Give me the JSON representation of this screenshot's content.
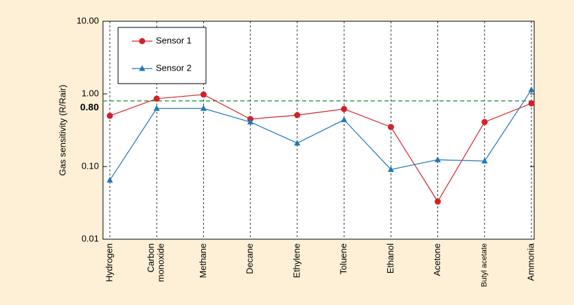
{
  "chart_data": {
    "type": "line",
    "y_label": "Gas sensitivity (R/Rair)",
    "categories": [
      "Hydrogen",
      "Carbon\nmonoxide",
      "Methane",
      "Decane",
      "Ethylene",
      "Toluene",
      "Ethanol",
      "Acetone",
      "Butyl acetate",
      "Ammonia"
    ],
    "series": [
      {
        "name": "Sensor 1",
        "color": "#d42027",
        "marker": "circle",
        "values": [
          0.5,
          0.86,
          0.98,
          0.45,
          0.51,
          0.62,
          0.35,
          0.033,
          0.41,
          0.74
        ]
      },
      {
        "name": "Sensor 2",
        "color": "#1f78b8",
        "marker": "triangle",
        "values": [
          0.065,
          0.63,
          0.63,
          0.41,
          0.21,
          0.44,
          0.091,
          0.124,
          0.119,
          1.14
        ]
      }
    ],
    "threshold": {
      "value": 0.8,
      "label": "0.80",
      "color": "#2a9d4a"
    },
    "ylim": [
      0.01,
      10
    ],
    "log_y": true,
    "yticks": [
      0.01,
      {
        "value": 0.1,
        "label": "0.10"
      },
      {
        "value": 1,
        "label": "1.00"
      },
      {
        "value": 10,
        "label": "10.00"
      }
    ],
    "grid": true,
    "legend": "upper-left"
  }
}
